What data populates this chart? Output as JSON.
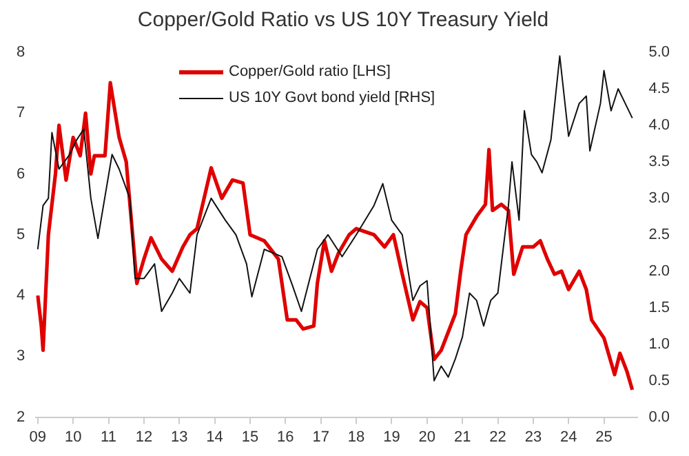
{
  "chart_data": {
    "type": "line",
    "title": "Copper/Gold Ratio vs US 10Y Treasury Yield",
    "xlim": [
      2008.95,
      2025.95
    ],
    "xticks": [
      {
        "value": 2009,
        "label": "09"
      },
      {
        "value": 2010,
        "label": "10"
      },
      {
        "value": 2011,
        "label": "11"
      },
      {
        "value": 2012,
        "label": "12"
      },
      {
        "value": 2013,
        "label": "13"
      },
      {
        "value": 2014,
        "label": "14"
      },
      {
        "value": 2015,
        "label": "15"
      },
      {
        "value": 2016,
        "label": "16"
      },
      {
        "value": 2017,
        "label": "17"
      },
      {
        "value": 2018,
        "label": "18"
      },
      {
        "value": 2019,
        "label": "19"
      },
      {
        "value": 2020,
        "label": "20"
      },
      {
        "value": 2021,
        "label": "21"
      },
      {
        "value": 2022,
        "label": "22"
      },
      {
        "value": 2023,
        "label": "23"
      },
      {
        "value": 2024,
        "label": "24"
      },
      {
        "value": 2025,
        "label": "25"
      }
    ],
    "ylim": [
      2,
      8
    ],
    "yticks": [
      2,
      3,
      4,
      5,
      6,
      7,
      8
    ],
    "y2lim": [
      0,
      5
    ],
    "y2ticks": [
      {
        "value": 0,
        "label": "0.0"
      },
      {
        "value": 0.5,
        "label": "0.5"
      },
      {
        "value": 1,
        "label": "1.0"
      },
      {
        "value": 1.5,
        "label": "1.5"
      },
      {
        "value": 2,
        "label": "2.0"
      },
      {
        "value": 2.5,
        "label": "2.5"
      },
      {
        "value": 3,
        "label": "3.0"
      },
      {
        "value": 3.5,
        "label": "3.5"
      },
      {
        "value": 4,
        "label": "4.0"
      },
      {
        "value": 4.5,
        "label": "4.5"
      },
      {
        "value": 5,
        "label": "5.0"
      }
    ],
    "grid": false,
    "legend": "top",
    "marker": "none",
    "line_style": "solid",
    "series": [
      {
        "name": "Copper/Gold ratio [LHS]",
        "color": "#e00000",
        "axis": "y",
        "x": [
          2009.0,
          2009.1,
          2009.15,
          2009.3,
          2009.5,
          2009.6,
          2009.8,
          2010.0,
          2010.2,
          2010.35,
          2010.5,
          2010.6,
          2010.9,
          2011.05,
          2011.3,
          2011.5,
          2011.65,
          2011.8,
          2012.0,
          2012.2,
          2012.5,
          2012.8,
          2013.1,
          2013.3,
          2013.5,
          2013.9,
          2014.2,
          2014.5,
          2014.8,
          2015.0,
          2015.4,
          2015.8,
          2016.05,
          2016.3,
          2016.5,
          2016.8,
          2016.9,
          2017.1,
          2017.3,
          2017.5,
          2017.8,
          2018.0,
          2018.5,
          2018.8,
          2019.05,
          2019.3,
          2019.6,
          2019.8,
          2020.0,
          2020.2,
          2020.4,
          2020.6,
          2020.8,
          2020.95,
          2021.1,
          2021.4,
          2021.65,
          2021.75,
          2021.85,
          2022.1,
          2022.3,
          2022.45,
          2022.7,
          2023.0,
          2023.2,
          2023.4,
          2023.6,
          2023.8,
          2024.0,
          2024.3,
          2024.5,
          2024.65,
          2025.0,
          2025.3,
          2025.45,
          2025.65,
          2025.8
        ],
        "values": [
          4.0,
          3.5,
          3.1,
          5.0,
          6.0,
          6.8,
          5.9,
          6.6,
          6.3,
          7.0,
          6.0,
          6.3,
          6.3,
          7.5,
          6.6,
          6.2,
          5.2,
          4.2,
          4.6,
          4.95,
          4.6,
          4.4,
          4.8,
          5.0,
          5.1,
          6.1,
          5.6,
          5.9,
          5.85,
          5.0,
          4.9,
          4.6,
          3.6,
          3.6,
          3.45,
          3.5,
          4.2,
          4.9,
          4.4,
          4.7,
          5.0,
          5.1,
          5.0,
          4.8,
          5.0,
          4.35,
          3.6,
          3.9,
          3.8,
          2.95,
          3.1,
          3.4,
          3.7,
          4.4,
          5.0,
          5.3,
          5.5,
          6.4,
          5.4,
          5.5,
          5.4,
          4.35,
          4.8,
          4.8,
          4.9,
          4.6,
          4.35,
          4.4,
          4.1,
          4.4,
          4.1,
          3.6,
          3.3,
          2.7,
          3.05,
          2.75,
          2.45
        ]
      },
      {
        "name": "US 10Y Govt bond yield [RHS]",
        "color": "#111111",
        "axis": "y2",
        "x": [
          2009.0,
          2009.15,
          2009.3,
          2009.4,
          2009.6,
          2009.9,
          2010.1,
          2010.3,
          2010.5,
          2010.7,
          2011.1,
          2011.3,
          2011.6,
          2011.75,
          2012.0,
          2012.3,
          2012.5,
          2012.8,
          2013.0,
          2013.3,
          2013.5,
          2013.9,
          2014.3,
          2014.6,
          2014.9,
          2015.05,
          2015.4,
          2015.9,
          2016.2,
          2016.45,
          2016.9,
          2017.2,
          2017.6,
          2018.0,
          2018.5,
          2018.75,
          2019.0,
          2019.3,
          2019.6,
          2019.8,
          2020.0,
          2020.2,
          2020.4,
          2020.6,
          2020.8,
          2021.0,
          2021.2,
          2021.4,
          2021.6,
          2021.8,
          2022.0,
          2022.15,
          2022.3,
          2022.4,
          2022.6,
          2022.75,
          2022.95,
          2023.1,
          2023.25,
          2023.5,
          2023.75,
          2024.0,
          2024.3,
          2024.5,
          2024.6,
          2024.9,
          2025.0,
          2025.2,
          2025.4,
          2025.6,
          2025.8
        ],
        "values": [
          2.3,
          2.9,
          3.0,
          3.9,
          3.4,
          3.6,
          3.8,
          3.95,
          3.0,
          2.45,
          3.6,
          3.4,
          3.0,
          1.9,
          1.9,
          2.1,
          1.45,
          1.7,
          1.9,
          1.7,
          2.5,
          3.0,
          2.7,
          2.5,
          2.1,
          1.65,
          2.3,
          2.2,
          1.8,
          1.45,
          2.3,
          2.5,
          2.2,
          2.5,
          2.9,
          3.2,
          2.7,
          2.5,
          1.6,
          1.8,
          1.87,
          0.5,
          0.7,
          0.55,
          0.8,
          1.1,
          1.7,
          1.6,
          1.25,
          1.6,
          1.7,
          2.3,
          2.9,
          3.5,
          2.7,
          4.2,
          3.6,
          3.5,
          3.35,
          3.8,
          4.95,
          3.85,
          4.3,
          4.4,
          3.65,
          4.3,
          4.75,
          4.2,
          4.5,
          4.3,
          4.1
        ]
      }
    ]
  }
}
